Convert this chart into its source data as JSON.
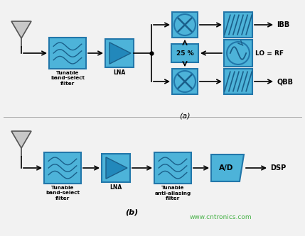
{
  "bg_color": "#f2f2f2",
  "box_color": "#4db3d9",
  "box_edge": "#2277aa",
  "text_color": "#000000",
  "arrow_color": "#000000",
  "watermark": "www.cntronics.com",
  "watermark_color": "#33aa33",
  "label_a": "(a)",
  "label_b": "(b)",
  "IBB": "IBB",
  "QBB": "QBB",
  "DSP": "DSP",
  "LO_RF": "LO = RF",
  "pct25": "25 %",
  "AD": "A/D",
  "tunable_bsf": "Tunable\nband-select\nfilter",
  "lna": "LNA",
  "tunable_aaf": "Tunable\nanti-aliasing\nfilter",
  "ant_fill": "#c8c8c8",
  "ant_edge": "#555555",
  "inner_color": "#1a5f8a",
  "divider_color": "#aaaaaa"
}
